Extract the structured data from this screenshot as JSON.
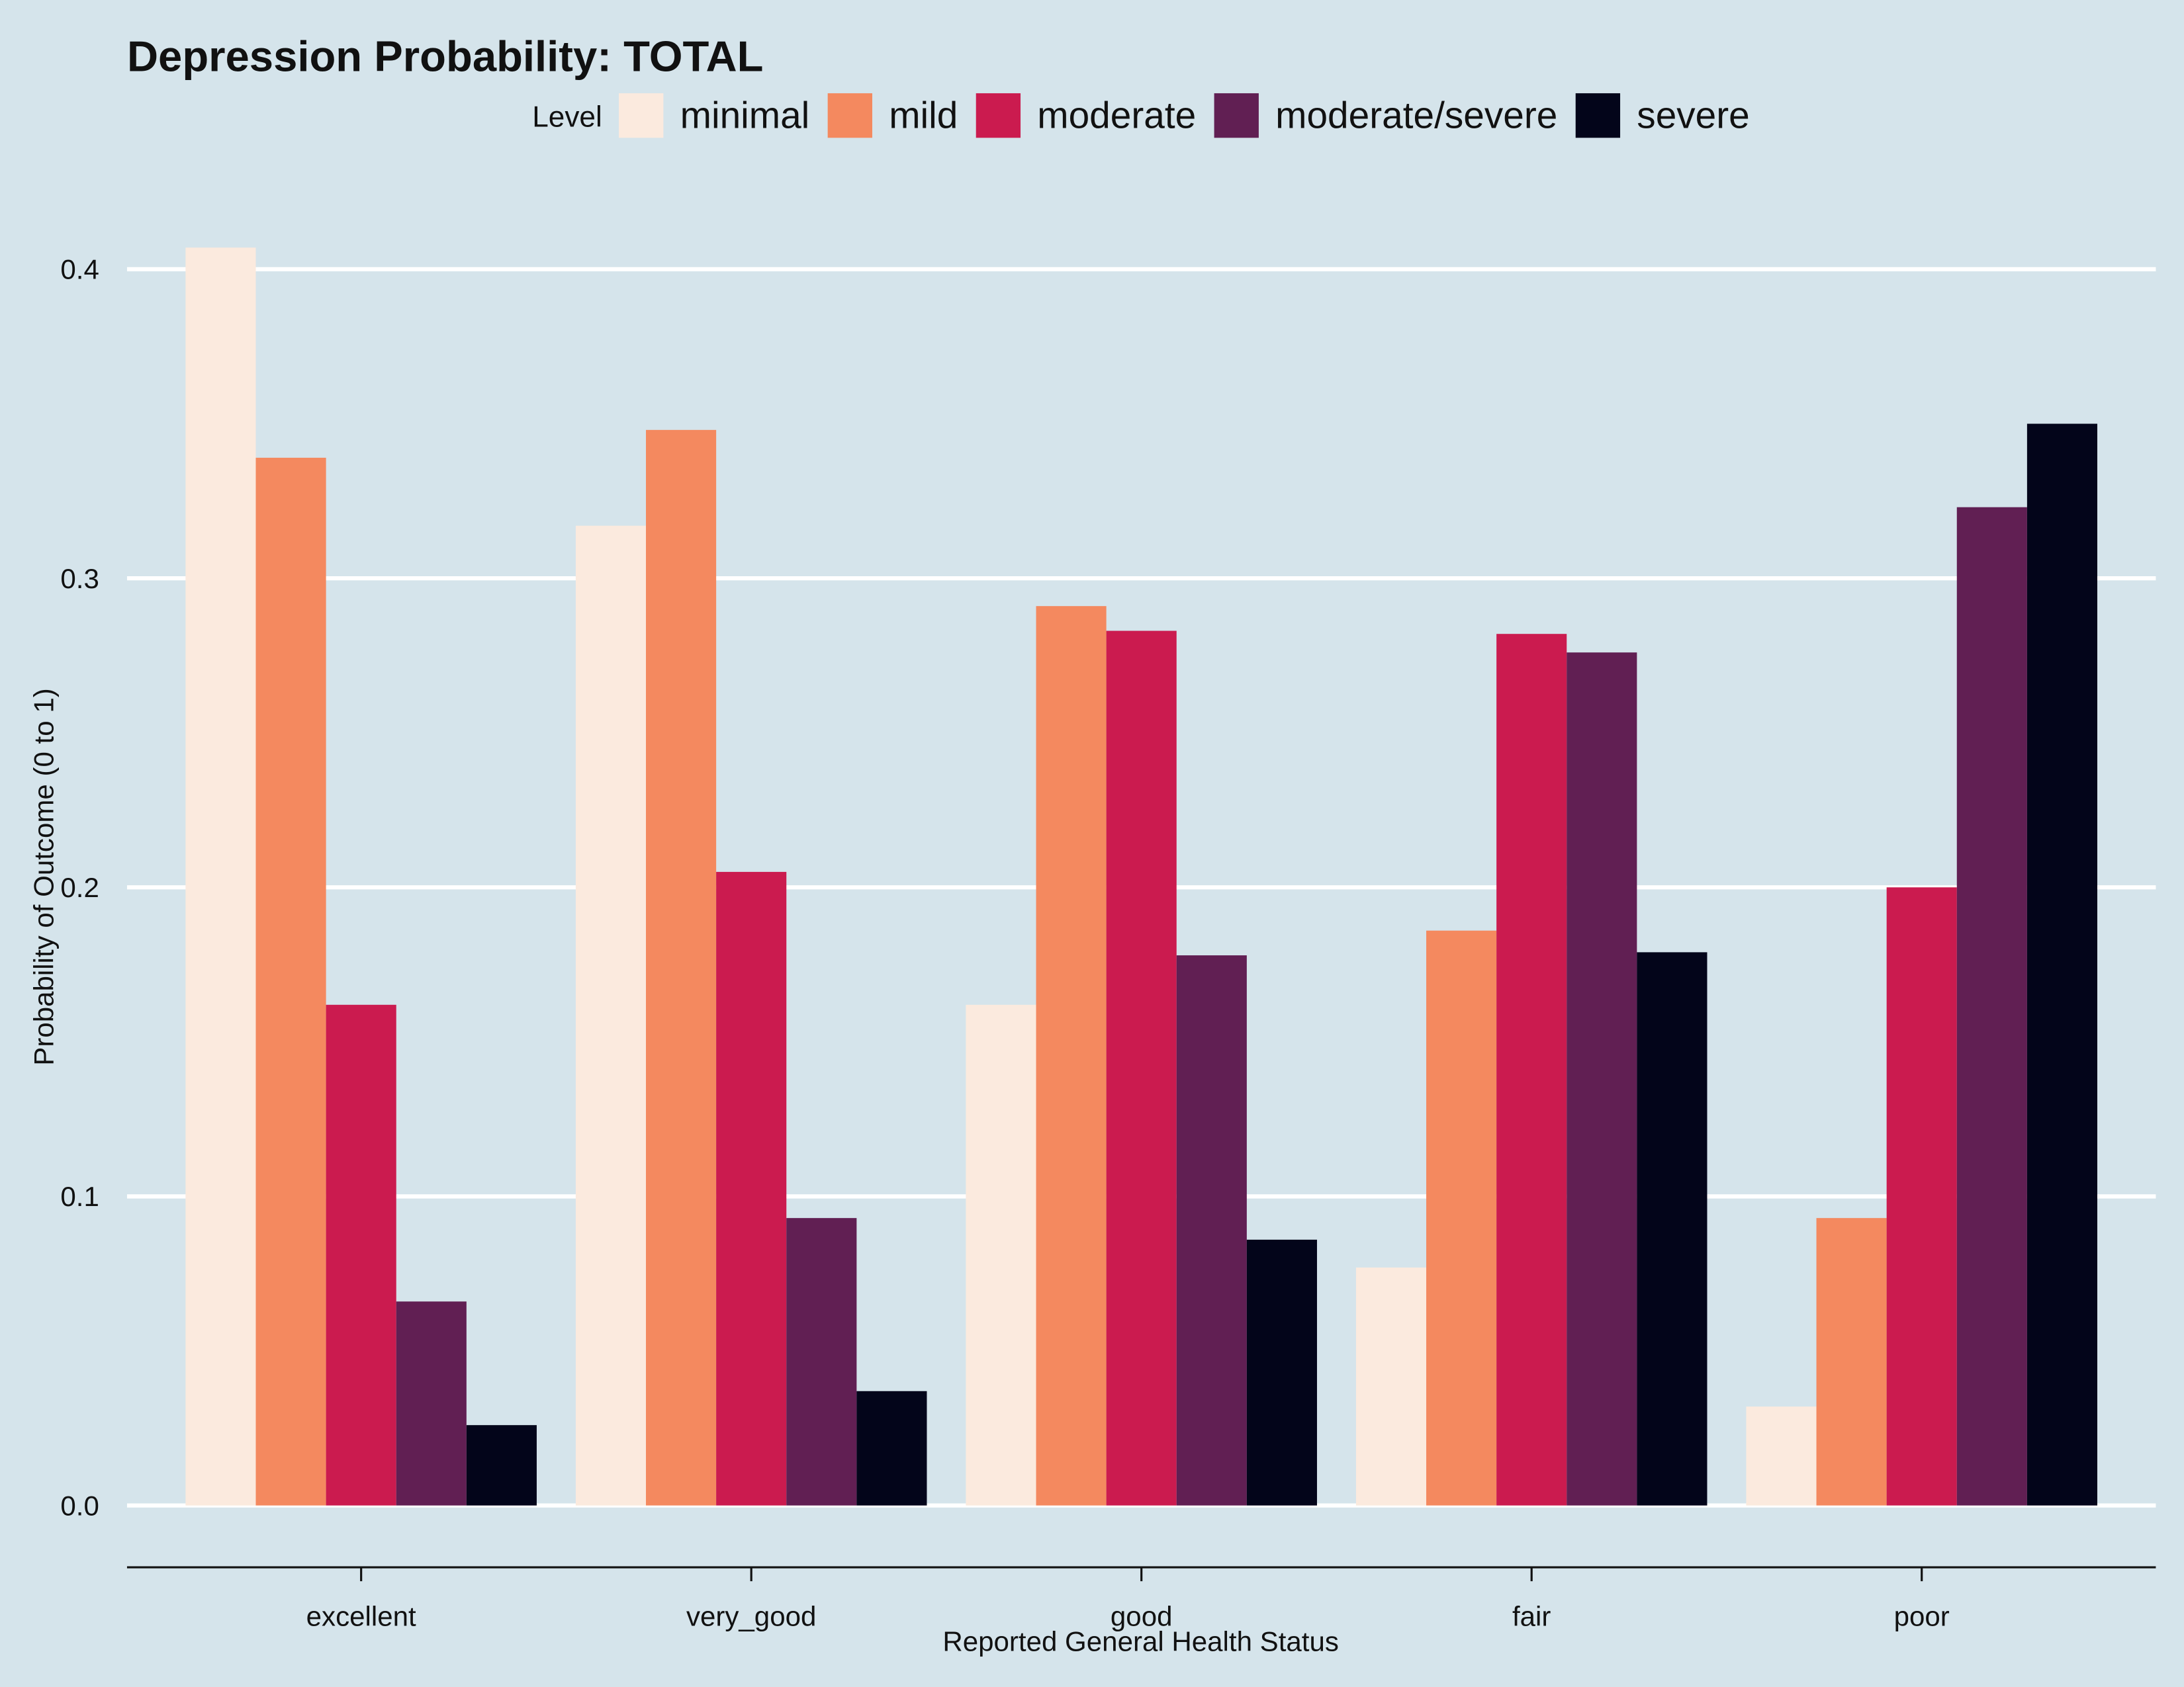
{
  "chart_data": {
    "type": "bar",
    "title": "Depression Probability: TOTAL",
    "x_label": "Reported General Health Status",
    "y_label": "Probability of Outcome (0 to 1)",
    "legend_title": "Level",
    "legend_position": "top",
    "categories": [
      "excellent",
      "very_good",
      "good",
      "fair",
      "poor"
    ],
    "series": [
      {
        "name": "minimal",
        "color": "#fbeade",
        "values": [
          0.407,
          0.317,
          0.162,
          0.077,
          0.032
        ]
      },
      {
        "name": "mild",
        "color": "#f4895f",
        "values": [
          0.339,
          0.348,
          0.291,
          0.186,
          0.093
        ]
      },
      {
        "name": "moderate",
        "color": "#cb1b4f",
        "values": [
          0.162,
          0.205,
          0.283,
          0.282,
          0.2
        ]
      },
      {
        "name": "moderate/severe",
        "color": "#611f53",
        "values": [
          0.066,
          0.093,
          0.178,
          0.276,
          0.323
        ]
      },
      {
        "name": "severe",
        "color": "#03051a",
        "values": [
          0.026,
          0.037,
          0.086,
          0.179,
          0.35
        ]
      }
    ],
    "ylim": [
      -0.02,
      0.42
    ],
    "yticks": [
      {
        "value": 0,
        "label": "0.0"
      },
      0.1,
      0.2,
      0.3,
      0.4
    ],
    "grid": true
  }
}
